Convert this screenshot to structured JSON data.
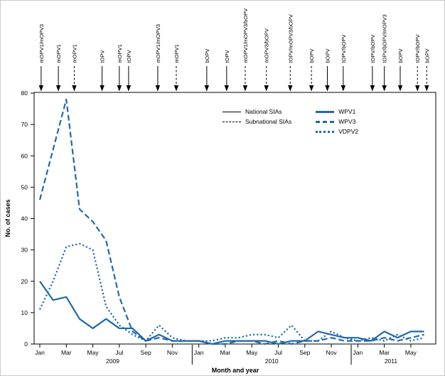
{
  "figure": {
    "ylabel": "No. of cases",
    "xlabel": "Month and year"
  },
  "colors": {
    "series_blue": "#2069ac",
    "axis": "#000000"
  },
  "legend": {
    "sia_items": [
      {
        "label": "National SIAs",
        "style": "solid"
      },
      {
        "label": "Subnational SIAs",
        "style": "dashed"
      }
    ],
    "series_items": [
      {
        "label": "WPV1",
        "style": "solid"
      },
      {
        "label": "WPV3",
        "style": "dashed"
      },
      {
        "label": "VDPV2",
        "style": "dotted"
      }
    ]
  },
  "chart_data": {
    "type": "line",
    "xlabel": "Month and year",
    "ylabel": "No. of cases",
    "ylim": [
      0,
      80
    ],
    "yticks": [
      0,
      10,
      20,
      30,
      40,
      50,
      60,
      70,
      80
    ],
    "months": [
      "Jan 2009",
      "Feb 2009",
      "Mar 2009",
      "Apr 2009",
      "May 2009",
      "Jun 2009",
      "Jul 2009",
      "Aug 2009",
      "Sep 2009",
      "Oct 2009",
      "Nov 2009",
      "Dec 2009",
      "Jan 2010",
      "Feb 2010",
      "Mar 2010",
      "Apr 2010",
      "May 2010",
      "Jun 2010",
      "Jul 2010",
      "Aug 2010",
      "Sep 2010",
      "Oct 2010",
      "Nov 2010",
      "Dec 2010",
      "Jan 2011",
      "Feb 2011",
      "Mar 2011",
      "Apr 2011",
      "May 2011",
      "Jun 2011"
    ],
    "x_tick_labels": [
      "Jan",
      "Mar",
      "May",
      "Jul",
      "Sep",
      "Nov",
      "Jan",
      "Mar",
      "May",
      "Jul",
      "Sep",
      "Nov",
      "Jan",
      "Mar",
      "May"
    ],
    "years": [
      {
        "label": "2009",
        "center_month": 5.5
      },
      {
        "label": "2010",
        "center_month": 17.5
      },
      {
        "label": "2011",
        "center_month": 26.5
      }
    ],
    "year_divider_months": [
      11.5,
      23.5
    ],
    "series": [
      {
        "name": "WPV1",
        "style": "solid",
        "values": [
          20,
          14,
          15,
          8,
          5,
          8,
          5,
          5,
          1,
          3,
          1,
          1,
          1,
          0,
          1,
          1,
          1,
          1,
          0,
          1,
          1,
          4,
          3,
          2,
          2,
          1,
          4,
          2,
          4,
          4
        ]
      },
      {
        "name": "WPV3",
        "style": "dashed",
        "values": [
          46,
          62,
          78,
          43,
          39,
          33,
          15,
          4,
          1,
          2,
          1,
          1,
          1,
          0,
          0,
          1,
          1,
          0,
          1,
          0,
          1,
          1,
          2,
          1,
          1,
          1,
          2,
          1,
          2,
          3
        ]
      },
      {
        "name": "VDPV2",
        "style": "dotted",
        "values": [
          11,
          20,
          31,
          32,
          30,
          12,
          6,
          3,
          1,
          6,
          2,
          1,
          1,
          1,
          2,
          2,
          3,
          3,
          2,
          6,
          1,
          1,
          4,
          2,
          1,
          2,
          1,
          3,
          1,
          2
        ]
      }
    ],
    "sia_events": [
      {
        "label": "mOPV1/mOPV3",
        "month": 0.1,
        "style": "solid"
      },
      {
        "label": "mOPV1",
        "month": 1.4,
        "style": "solid"
      },
      {
        "label": "mOPV1",
        "month": 2.6,
        "style": "dashed"
      },
      {
        "label": "tOPV",
        "month": 4.7,
        "style": "solid"
      },
      {
        "label": "mOPV1",
        "month": 6.0,
        "style": "solid"
      },
      {
        "label": "tOPV",
        "month": 6.7,
        "style": "solid"
      },
      {
        "label": "mOPV1/mOPV3",
        "month": 8.9,
        "style": "solid"
      },
      {
        "label": "mOPV1",
        "month": 10.3,
        "style": "dashed"
      },
      {
        "label": "bOPV",
        "month": 12.6,
        "style": "solid"
      },
      {
        "label": "tOPV",
        "month": 14.1,
        "style": "solid"
      },
      {
        "label": "mOPV1/mOPV3/bOPV",
        "month": 15.5,
        "style": "dashed"
      },
      {
        "label": "mOPV3/bOPV",
        "month": 17.1,
        "style": "dashed"
      },
      {
        "label": "tOPV/mOPV3/bOPV",
        "month": 18.9,
        "style": "dashed"
      },
      {
        "label": "bOPV",
        "month": 20.5,
        "style": "dashed"
      },
      {
        "label": "bOPV",
        "month": 21.7,
        "style": "solid"
      },
      {
        "label": "tOPV/bOPV",
        "month": 22.9,
        "style": "solid"
      },
      {
        "label": "tOPV/bOPV",
        "month": 25.1,
        "style": "solid"
      },
      {
        "label": "tOPV/bOPV/mOPV3",
        "month": 26.0,
        "style": "solid"
      },
      {
        "label": "bOPV",
        "month": 27.2,
        "style": "solid"
      },
      {
        "label": "tOPV/bOPV",
        "month": 28.5,
        "style": "dashed"
      },
      {
        "label": "bOPV",
        "month": 29.2,
        "style": "dashed"
      }
    ]
  }
}
